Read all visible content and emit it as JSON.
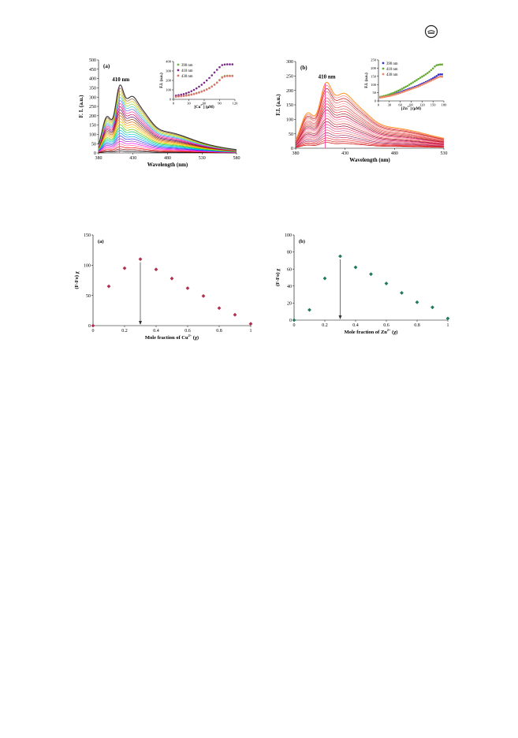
{
  "page": {
    "logo_icon": "journal-logo-icon"
  },
  "chart_data": [
    {
      "id": "a",
      "type": "line",
      "panel_label": "(a)",
      "peak_label": "410 nm",
      "xlabel": "Wavelength (nm)",
      "ylabel": "F. I. (a.u.)",
      "xlim": [
        380,
        580
      ],
      "ylim": [
        0,
        500
      ],
      "xticks": [
        "380",
        "430",
        "480",
        "530",
        "580"
      ],
      "yticks": [
        "0",
        "50",
        "100",
        "150",
        "200",
        "250",
        "300",
        "350",
        "400",
        "450",
        "500"
      ],
      "series_count": 24,
      "peak_max": 365,
      "peak_min": 10,
      "colors": [
        "#000000",
        "#8b0000",
        "#ff0000",
        "#ff6699",
        "#ff00ff",
        "#9933cc",
        "#3333ff",
        "#0099ff",
        "#00cccc",
        "#00cc66",
        "#66cc00",
        "#ffcc00",
        "#ff9900",
        "#cc6600",
        "#993300",
        "#660066",
        "#cc0066",
        "#ff3399",
        "#6666ff",
        "#33cccc",
        "#99cc33",
        "#cccc00",
        "#996633",
        "#333333"
      ],
      "inset": {
        "xlabel": "[Cu2+] (μM)",
        "ylabel": "F.I. (a.u.)",
        "xlim": [
          0,
          120
        ],
        "ylim": [
          0,
          400
        ],
        "xticks": [
          "0",
          "30",
          "60",
          "90",
          "120"
        ],
        "yticks": [
          "0",
          "100",
          "200",
          "300",
          "400"
        ],
        "series": [
          {
            "name": "390 nm",
            "color": "#66bb44",
            "x": [
              5,
              10,
              15,
              20,
              25,
              30,
              35,
              40,
              45,
              50,
              55,
              60,
              65,
              70,
              75,
              80,
              85,
              90,
              95,
              100,
              105,
              110,
              115
            ],
            "y": [
              30,
              32,
              35,
              38,
              42,
              46,
              52,
              58,
              66,
              74,
              84,
              94,
              106,
              120,
              136,
              156,
              178,
              205,
              235,
              248,
              250,
              250,
              250
            ]
          },
          {
            "name": "410 nm",
            "color": "#7a2a8a",
            "x": [
              5,
              10,
              15,
              20,
              25,
              30,
              35,
              40,
              45,
              50,
              55,
              60,
              65,
              70,
              75,
              80,
              85,
              90,
              95,
              100,
              105,
              110,
              115
            ],
            "y": [
              40,
              44,
              50,
              56,
              64,
              74,
              86,
              100,
              116,
              134,
              154,
              176,
              200,
              226,
              254,
              284,
              312,
              340,
              362,
              368,
              370,
              370,
              370
            ]
          },
          {
            "name": "430 nm",
            "color": "#e07070",
            "x": [
              5,
              10,
              15,
              20,
              25,
              30,
              35,
              40,
              45,
              50,
              55,
              60,
              65,
              70,
              75,
              80,
              85,
              90,
              95,
              100,
              105,
              110,
              115
            ],
            "y": [
              28,
              30,
              33,
              36,
              40,
              44,
              50,
              56,
              64,
              72,
              82,
              92,
              104,
              118,
              134,
              154,
              176,
              202,
              230,
              242,
              246,
              246,
              246
            ]
          }
        ]
      }
    },
    {
      "id": "b",
      "type": "line",
      "panel_label": "(b)",
      "peak_label": "410 nm",
      "xlabel": "Wavelength (nm)",
      "ylabel": "F.I. (a.u.)",
      "xlim": [
        380,
        530
      ],
      "ylim": [
        0,
        300
      ],
      "xticks": [
        "380",
        "430",
        "480",
        "530"
      ],
      "yticks": [
        "0",
        "50",
        "100",
        "150",
        "200",
        "250",
        "300"
      ],
      "series_count": 22,
      "peak_max": 228,
      "peak_min": 20,
      "colors": [
        "#cc0000",
        "#dd2222",
        "#ee3333",
        "#cc3366",
        "#993366",
        "#ff6666",
        "#cc6699",
        "#ff3366",
        "#990033",
        "#cc3333",
        "#ff9999",
        "#ff6699",
        "#cc0033",
        "#993333",
        "#ff3333",
        "#cc6666",
        "#ee4444",
        "#ffaaaa",
        "#dd5555",
        "#cc1111",
        "#ff7777",
        "#ff9933"
      ],
      "inset": {
        "xlabel": "[Zn2+] (μM)",
        "ylabel": "F.I. (a.u.)",
        "xlim": [
          0,
          180
        ],
        "ylim": [
          0,
          250
        ],
        "xticks": [
          "0",
          "30",
          "60",
          "90",
          "120",
          "150",
          "180"
        ],
        "yticks": [
          "0",
          "50",
          "100",
          "150",
          "200",
          "250"
        ],
        "series": [
          {
            "name": "390 nm",
            "color": "#3333cc",
            "x": [
              5,
              10,
              15,
              20,
              25,
              30,
              35,
              40,
              45,
              50,
              55,
              60,
              65,
              70,
              75,
              80,
              85,
              90,
              95,
              100,
              105,
              110,
              115,
              120,
              125,
              130,
              135,
              140,
              145,
              150,
              155,
              160,
              165,
              170,
              175
            ],
            "y": [
              22,
              24,
              26,
              28,
              30,
              33,
              36,
              39,
              42,
              46,
              50,
              54,
              58,
              62,
              66,
              70,
              74,
              78,
              82,
              86,
              90,
              95,
              100,
              105,
              110,
              115,
              120,
              126,
              132,
              138,
              145,
              152,
              160,
              162,
              162
            ]
          },
          {
            "name": "410 nm",
            "color": "#66aa33",
            "x": [
              5,
              10,
              15,
              20,
              25,
              30,
              35,
              40,
              45,
              50,
              55,
              60,
              65,
              70,
              75,
              80,
              85,
              90,
              95,
              100,
              105,
              110,
              115,
              120,
              125,
              130,
              135,
              140,
              145,
              150,
              155,
              160,
              165,
              170,
              175
            ],
            "y": [
              25,
              27,
              30,
              33,
              36,
              40,
              44,
              48,
              53,
              58,
              63,
              68,
              74,
              80,
              86,
              92,
              99,
              106,
              113,
              120,
              127,
              134,
              141,
              148,
              155,
              162,
              170,
              178,
              188,
              198,
              210,
              218,
              220,
              222,
              222
            ]
          },
          {
            "name": "430 nm",
            "color": "#ee8866",
            "x": [
              5,
              10,
              15,
              20,
              25,
              30,
              35,
              40,
              45,
              50,
              55,
              60,
              65,
              70,
              75,
              80,
              85,
              90,
              95,
              100,
              105,
              110,
              115,
              120,
              125,
              130,
              135,
              140,
              145,
              150,
              155,
              160,
              165,
              170,
              175
            ],
            "y": [
              20,
              22,
              24,
              26,
              28,
              30,
              33,
              36,
              39,
              42,
              45,
              49,
              53,
              57,
              61,
              65,
              69,
              73,
              77,
              81,
              85,
              89,
              94,
              99,
              104,
              109,
              114,
              119,
              124,
              129,
              134,
              140,
              146,
              148,
              148
            ]
          }
        ]
      }
    },
    {
      "id": "c",
      "type": "scatter",
      "panel_label": "(a)",
      "xlabel": "Mole fraction of Cu2+ (χ)",
      "ylabel": "(F-Fo) χ",
      "xlim": [
        0,
        1
      ],
      "ylim": [
        0,
        150
      ],
      "xticks": [
        "0",
        "0.2",
        "0.4",
        "0.6",
        "0.8",
        "1"
      ],
      "yticks": [
        "0",
        "50",
        "100",
        "150"
      ],
      "marker_color": "#b03050",
      "x": [
        0,
        0.1,
        0.2,
        0.3,
        0.4,
        0.5,
        0.6,
        0.7,
        0.8,
        0.9,
        1.0
      ],
      "y": [
        0,
        65,
        95,
        110,
        93,
        78,
        62,
        49,
        29,
        18,
        3
      ],
      "arrow_x": 0.3
    },
    {
      "id": "d",
      "type": "scatter",
      "panel_label": "(b)",
      "xlabel": "Mole fraction of Zn2+ (χ)",
      "ylabel": "(F-Fo) χ",
      "xlim": [
        0,
        1
      ],
      "ylim": [
        0,
        100
      ],
      "xticks": [
        "0",
        "0.2",
        "0.4",
        "0.6",
        "0.8",
        "1"
      ],
      "yticks": [
        "0",
        "20",
        "40",
        "60",
        "80",
        "100"
      ],
      "marker_color": "#1f7a5a",
      "x": [
        0,
        0.1,
        0.2,
        0.3,
        0.4,
        0.5,
        0.6,
        0.7,
        0.8,
        0.9,
        1.0
      ],
      "y": [
        0,
        12,
        49,
        75,
        62,
        54,
        43,
        32,
        21,
        15,
        2
      ],
      "arrow_x": 0.3
    }
  ]
}
